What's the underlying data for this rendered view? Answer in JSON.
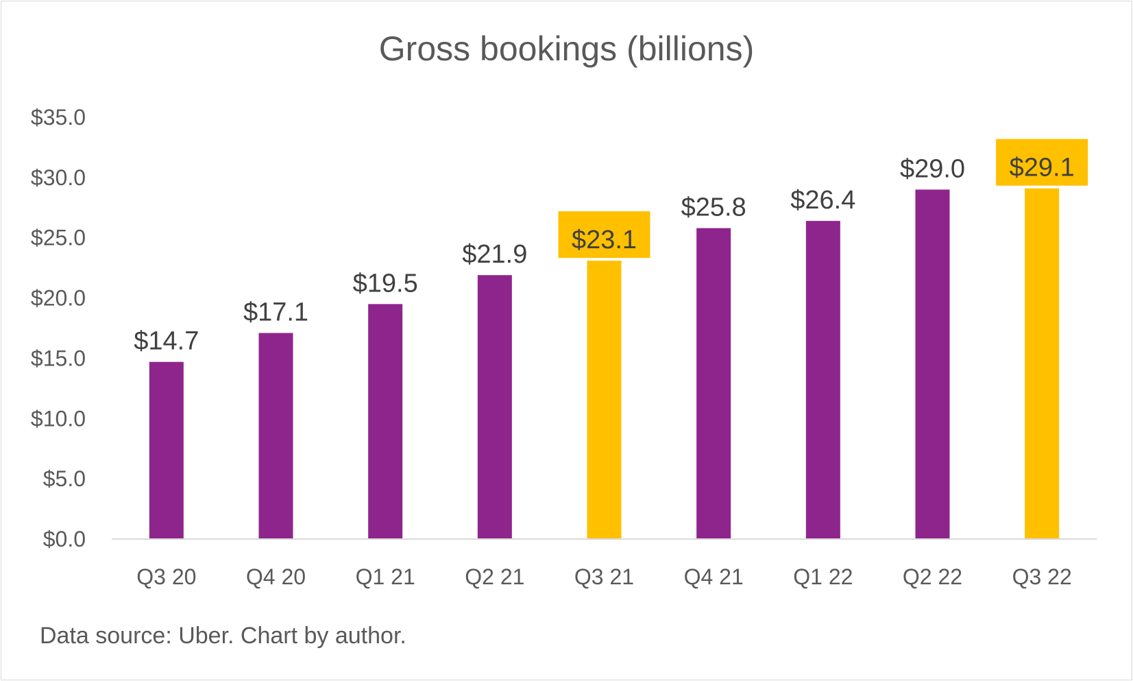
{
  "chart_data": {
    "type": "bar",
    "title": "Gross bookings (billions)",
    "categories": [
      "Q3 20",
      "Q4 20",
      "Q1 21",
      "Q2 21",
      "Q3 21",
      "Q4 21",
      "Q1 22",
      "Q2 22",
      "Q3 22"
    ],
    "values": [
      14.7,
      17.1,
      19.5,
      21.9,
      23.1,
      25.8,
      26.4,
      29.0,
      29.1
    ],
    "data_labels": [
      "$14.7",
      "$17.1",
      "$19.5",
      "$21.9",
      "$23.1",
      "$25.8",
      "$26.4",
      "$29.0",
      "$29.1"
    ],
    "highlighted": [
      false,
      false,
      false,
      false,
      true,
      false,
      false,
      false,
      true
    ],
    "ylim": [
      0,
      35
    ],
    "yticks": [
      0,
      5,
      10,
      15,
      20,
      25,
      30,
      35
    ],
    "ytick_labels": [
      "$0.0",
      "$5.0",
      "$10.0",
      "$15.0",
      "$20.0",
      "$25.0",
      "$30.0",
      "$35.0"
    ],
    "xlabel": "",
    "ylabel": "",
    "grid": false,
    "legend": "none",
    "colors": {
      "bar": "#8e258d",
      "highlight": "#ffc000",
      "axis": "#d9d9d9"
    }
  },
  "footer": {
    "source": "Data source: Uber. Chart by author."
  }
}
